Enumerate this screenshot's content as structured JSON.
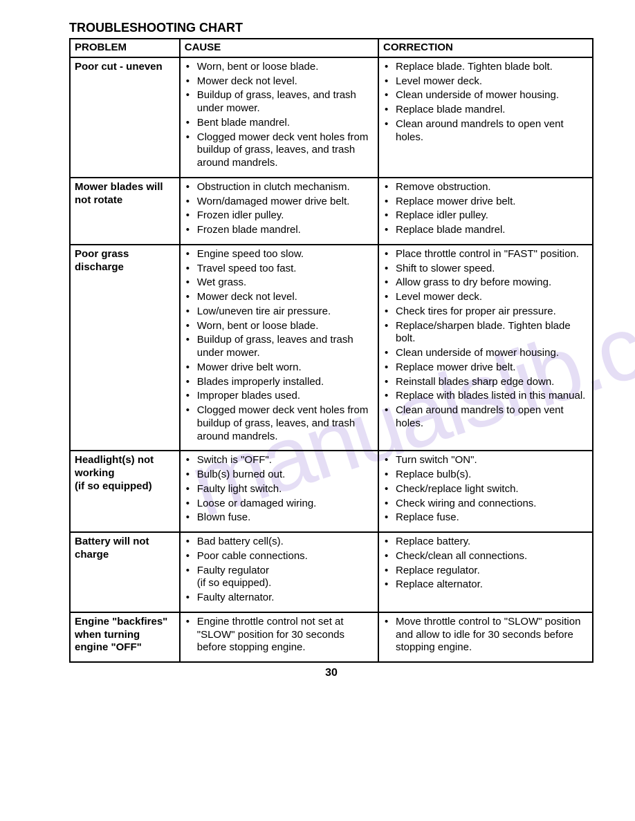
{
  "title": "TROUBLESHOOTING CHART",
  "headers": {
    "problem": "PROBLEM",
    "cause": "CAUSE",
    "correction": "CORRECTION"
  },
  "page_number": "30",
  "watermark": "manualslib.com",
  "rows": [
    {
      "problem": "Poor cut - uneven",
      "causes": [
        "Worn, bent or loose blade.",
        "Mower deck not level.",
        "Buildup of grass, leaves, and trash under mower.",
        "Bent blade mandrel.",
        "Clogged mower deck vent holes from buildup of grass, leaves, and trash around mandrels."
      ],
      "corrections": [
        "Replace blade.  Tighten blade bolt.",
        "Level mower deck.",
        "Clean underside of mower housing.",
        "Replace blade mandrel.",
        "Clean around mandrels to open vent holes."
      ]
    },
    {
      "problem": "Mower blades will not rotate",
      "causes": [
        "Obstruction in clutch mechanism.",
        "Worn/damaged mower drive belt.",
        "Frozen idler pulley.",
        "Frozen blade mandrel."
      ],
      "corrections": [
        "Remove obstruction.",
        "Replace mower drive belt.",
        "Replace idler pulley.",
        "Replace blade mandrel."
      ]
    },
    {
      "problem": "Poor grass discharge",
      "causes": [
        "Engine speed too slow.",
        "Travel speed too fast.",
        "Wet grass.",
        "Mower deck not level.",
        "Low/uneven tire air pressure.",
        "Worn, bent or loose blade.",
        "Buildup of grass, leaves and trash under mower.",
        "Mower drive belt worn.",
        "Blades improperly installed.",
        "Improper blades used.",
        "Clogged mower deck vent holes from buildup of grass, leaves, and trash around mandrels."
      ],
      "corrections": [
        "Place throttle control in \"FAST\" position.",
        "Shift to slower speed.",
        "Allow grass to dry before mowing.",
        "Level mower deck.",
        "Check tires for proper air pressure.",
        "Replace/sharpen blade. Tighten blade bolt.",
        "Clean underside of mower housing.",
        "Replace mower drive belt.",
        "Reinstall blades sharp edge down.",
        "Replace with blades listed in this manual.",
        "Clean around mandrels to open vent holes."
      ]
    },
    {
      "problem": "Headlight(s) not working\n(if so equipped)",
      "causes": [
        "Switch is \"OFF\".",
        "Bulb(s) burned out.",
        "Faulty light switch.",
        "Loose or damaged wiring.",
        "Blown fuse."
      ],
      "corrections": [
        "Turn switch \"ON\".",
        "Replace bulb(s).",
        "Check/replace light switch.",
        "Check wiring and connections.",
        "Replace fuse."
      ]
    },
    {
      "problem": "Battery will not charge",
      "causes": [
        "Bad battery cell(s).",
        "Poor cable connections.",
        "Faulty regulator\n(if so equipped).",
        "Faulty alternator."
      ],
      "corrections": [
        "Replace battery.",
        "Check/clean all connections.",
        "Replace regulator.",
        "Replace alternator."
      ]
    },
    {
      "problem": "Engine \"backfires\" when turning engine \"OFF\"",
      "causes": [
        "Engine throttle control not set at \"SLOW\" position for 30 seconds before stopping engine."
      ],
      "corrections": [
        "Move throttle control to \"SLOW\" position and allow to idle for 30 seconds before stopping engine."
      ]
    }
  ]
}
